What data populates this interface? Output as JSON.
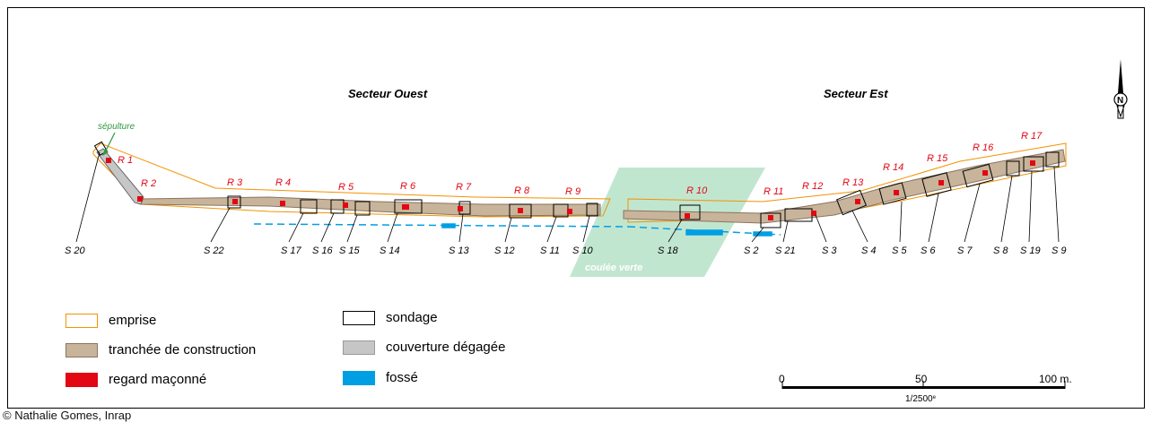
{
  "sectors": {
    "west": "Secteur Ouest",
    "east": "Secteur Est"
  },
  "annotations": {
    "burial": "sépulture",
    "green_flow": "coulée verte"
  },
  "regards": [
    "R 1",
    "R 2",
    "R 3",
    "R 4",
    "R 5",
    "R 6",
    "R 7",
    "R 8",
    "R 9",
    "R 10",
    "R 11",
    "R 12",
    "R 13",
    "R 14",
    "R 15",
    "R 16",
    "R 17"
  ],
  "sondages": [
    "S 20",
    "S 22",
    "S 17",
    "S 16",
    "S 15",
    "S 14",
    "S 13",
    "S 12",
    "S 11",
    "S 10",
    "S 18",
    "S 2",
    "S 21",
    "S 3",
    "S 4",
    "S 5",
    "S 6",
    "S 7",
    "S 8",
    "S 19",
    "S 9"
  ],
  "north_label": "N",
  "legend": [
    {
      "id": "emprise",
      "label": "emprise",
      "fill": "#ffffff",
      "stroke": "#f39200"
    },
    {
      "id": "tranchee",
      "label": "tranchée de construction",
      "fill": "#c8b49a",
      "stroke": "#8a7560"
    },
    {
      "id": "regard",
      "label": "regard maçonné",
      "fill": "#e30613",
      "stroke": "#e30613"
    },
    {
      "id": "sondage",
      "label": "sondage",
      "fill": "#ffffff",
      "stroke": "#000000"
    },
    {
      "id": "couverture",
      "label": "couverture dégagée",
      "fill": "#c6c6c6",
      "stroke": "#9a9a9a"
    },
    {
      "id": "fosse",
      "label": "fossé",
      "fill": "#009fe3",
      "stroke": "#009fe3"
    }
  ],
  "scale": {
    "ticks": [
      "0",
      "50",
      "100 m."
    ],
    "ratio_main": "1/2500",
    "ratio_sup": "e"
  },
  "credit": "© Nathalie Gomes, Inrap"
}
